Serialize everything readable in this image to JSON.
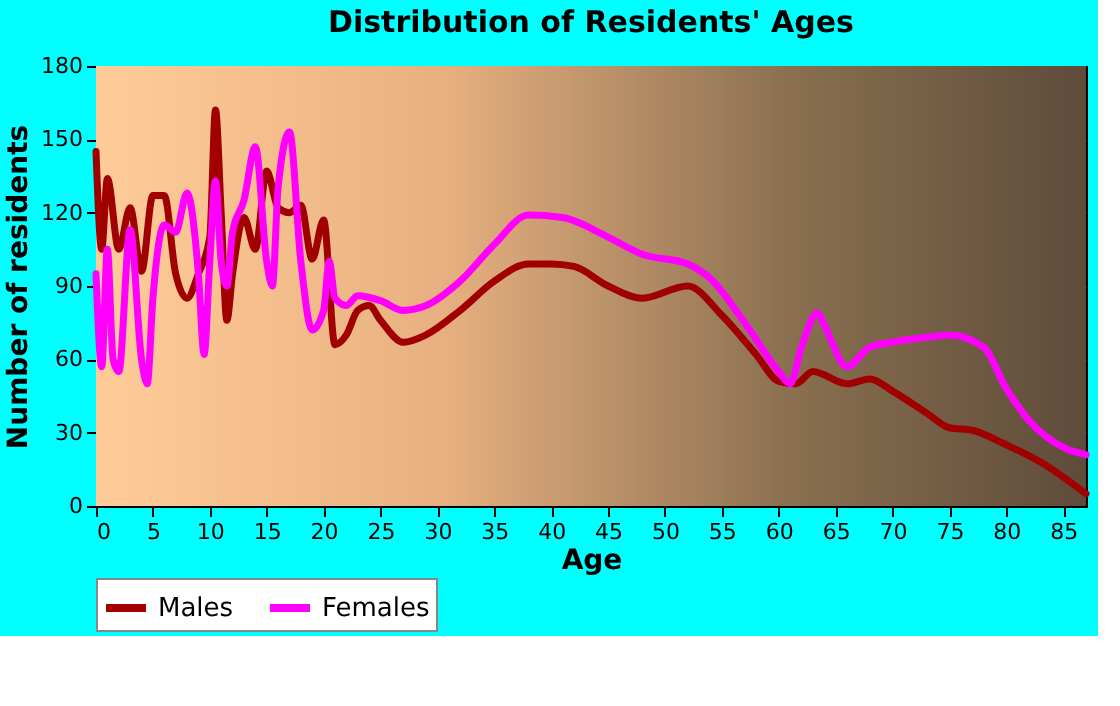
{
  "chart_data": {
    "type": "line",
    "title": "Distribution of Residents' Ages",
    "xlabel": "Age",
    "ylabel": "Number of residents",
    "xlim": [
      0,
      87
    ],
    "xticks": [
      0,
      5,
      10,
      15,
      20,
      25,
      30,
      35,
      40,
      45,
      50,
      55,
      60,
      65,
      70,
      75,
      80,
      85
    ],
    "ylim": [
      0,
      180
    ],
    "yticks": [
      0,
      30,
      60,
      90,
      120,
      150,
      180
    ],
    "grid": true,
    "legend": "bottom",
    "line_style": "solid",
    "marker": "none",
    "series": [
      {
        "name": "Males",
        "color": "#a00000",
        "x": [
          0,
          0.5,
          1,
          2,
          3,
          4,
          5,
          6,
          7,
          8,
          9,
          10,
          10.5,
          11,
          11.5,
          12,
          13,
          14,
          15,
          16,
          17,
          18,
          19,
          20,
          21,
          22,
          23,
          24,
          25,
          27,
          29,
          32,
          35,
          38,
          40,
          42,
          45,
          48,
          52,
          55,
          58,
          60,
          61.5,
          63,
          66,
          68,
          70,
          73,
          75,
          77,
          80,
          83,
          87
        ],
        "values": [
          145,
          105,
          134,
          105,
          122,
          96,
          127,
          127,
          95,
          85,
          95,
          110,
          162,
          120,
          76,
          95,
          118,
          105,
          137,
          122,
          120,
          123,
          101,
          117,
          66,
          70,
          80,
          82,
          76,
          67,
          70,
          80,
          92,
          99,
          99,
          98,
          90,
          85,
          90,
          78,
          62,
          51,
          50,
          55,
          50,
          52,
          47,
          38,
          32,
          31,
          25,
          18,
          5
        ]
      },
      {
        "name": "Females",
        "color": "#ff00ff",
        "x": [
          0,
          0.5,
          1,
          1.5,
          2,
          3,
          4,
          4.5,
          5,
          6,
          7,
          8,
          9,
          9.5,
          10,
          10.5,
          11,
          11.5,
          12,
          13,
          14,
          15,
          15.5,
          16,
          17,
          18,
          19,
          20,
          20.5,
          21,
          22,
          23,
          25,
          27,
          29,
          32,
          35,
          38,
          41,
          45,
          48,
          52,
          54,
          57,
          60,
          61,
          62,
          63.4,
          64,
          66,
          68,
          70,
          73,
          75,
          78,
          80,
          82,
          85,
          87
        ],
        "values": [
          95,
          57,
          105,
          60,
          55,
          113,
          60,
          50,
          85,
          115,
          112,
          128,
          95,
          62,
          100,
          133,
          100,
          90,
          112,
          125,
          147,
          100,
          90,
          130,
          153,
          100,
          72,
          80,
          100,
          85,
          82,
          86,
          84,
          80,
          82,
          92,
          107,
          119,
          118,
          110,
          103,
          99,
          93,
          75,
          55,
          50,
          65,
          79,
          74,
          57,
          65,
          67,
          69,
          70,
          65,
          48,
          35,
          24,
          21
        ]
      }
    ]
  }
}
